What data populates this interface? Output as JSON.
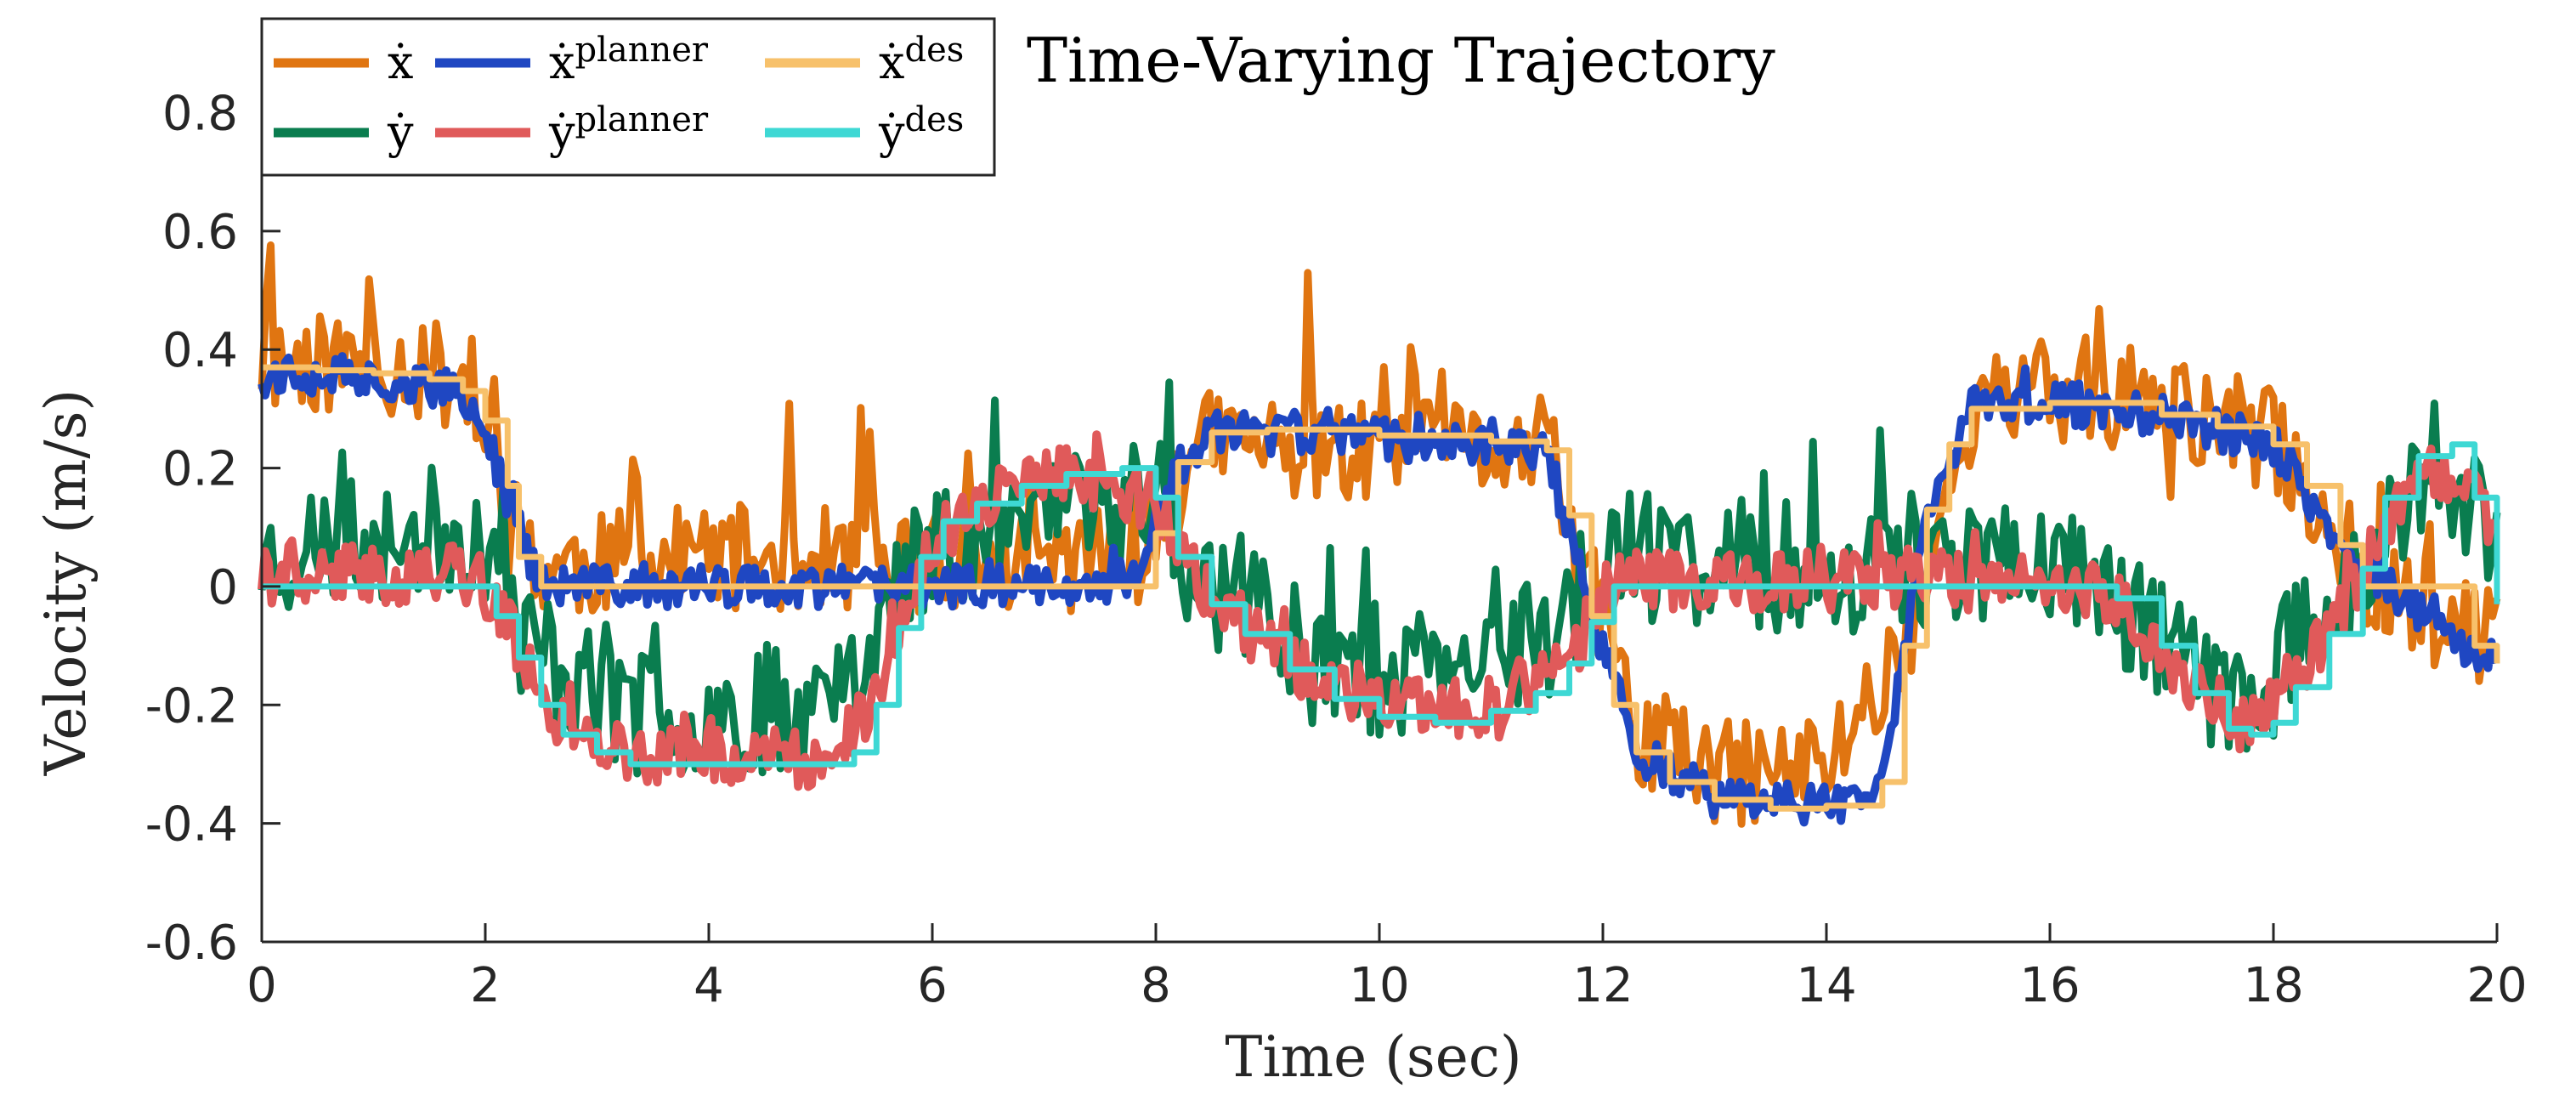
{
  "chart_data": {
    "type": "line",
    "title": "Time-Varying Trajectory",
    "xlabel": "Time (sec)",
    "ylabel": "Velocity (m/s)",
    "xlim": [
      0,
      20
    ],
    "ylim": [
      -0.6,
      0.95
    ],
    "x_ticks": [
      0,
      2,
      4,
      6,
      8,
      10,
      12,
      14,
      16,
      18,
      20
    ],
    "y_ticks": [
      -0.6,
      -0.4,
      -0.2,
      0,
      0.2,
      0.4,
      0.6,
      0.8
    ],
    "x_tick_labels": [
      "0",
      "2",
      "4",
      "6",
      "8",
      "10",
      "12",
      "14",
      "16",
      "18",
      "20"
    ],
    "y_tick_labels": [
      "-0.6",
      "-0.4",
      "-0.2",
      "0",
      "0.2",
      "0.4",
      "0.6",
      "0.8"
    ],
    "legend_position": "top-left",
    "series": [
      {
        "name": "x_dot_des",
        "label_base": "ẋ",
        "label_sup": "des",
        "color": "#f7c16b",
        "x": [
          0,
          0.5,
          1.0,
          1.5,
          1.8,
          2.0,
          2.2,
          2.3,
          2.5,
          3,
          4,
          5,
          6,
          7,
          7.8,
          8.0,
          8.2,
          8.5,
          9,
          10,
          11,
          11.5,
          11.7,
          11.9,
          12.1,
          12.3,
          12.6,
          13,
          13.5,
          14,
          14.5,
          14.7,
          14.9,
          15.1,
          15.3,
          16,
          17,
          17.5,
          18,
          18.3,
          18.6,
          18.8,
          19,
          19.5,
          19.8,
          20
        ],
        "y": [
          0.37,
          0.365,
          0.36,
          0.35,
          0.33,
          0.28,
          0.17,
          0.05,
          0.0,
          0.0,
          0.0,
          0.0,
          0.0,
          0.0,
          0.0,
          0.09,
          0.21,
          0.26,
          0.265,
          0.255,
          0.245,
          0.23,
          0.12,
          -0.05,
          -0.2,
          -0.28,
          -0.33,
          -0.36,
          -0.375,
          -0.37,
          -0.33,
          -0.1,
          0.13,
          0.24,
          0.3,
          0.31,
          0.29,
          0.27,
          0.24,
          0.17,
          0.07,
          0.0,
          0.0,
          0.0,
          -0.1,
          -0.13
        ]
      },
      {
        "name": "y_dot_des",
        "label_base": "ẏ",
        "label_sup": "des",
        "color": "#3ed8d4",
        "x": [
          0,
          1,
          1.9,
          2.1,
          2.3,
          2.5,
          2.7,
          3,
          3.3,
          4,
          5,
          5.3,
          5.5,
          5.7,
          5.9,
          6.1,
          6.4,
          6.8,
          7.2,
          7.7,
          8.0,
          8.2,
          8.5,
          8.8,
          9.2,
          9.6,
          10,
          10.5,
          11,
          11.4,
          11.7,
          11.9,
          12.1,
          13,
          14,
          15,
          16,
          16.6,
          17.0,
          17.3,
          17.6,
          17.8,
          18.0,
          18.2,
          18.5,
          18.8,
          19.0,
          19.3,
          19.6,
          19.8,
          20
        ],
        "y": [
          0.0,
          0.0,
          0.0,
          -0.05,
          -0.12,
          -0.2,
          -0.25,
          -0.28,
          -0.3,
          -0.3,
          -0.3,
          -0.28,
          -0.2,
          -0.07,
          0.05,
          0.11,
          0.14,
          0.17,
          0.19,
          0.2,
          0.15,
          0.05,
          -0.03,
          -0.08,
          -0.14,
          -0.19,
          -0.22,
          -0.23,
          -0.21,
          -0.18,
          -0.13,
          -0.06,
          0.0,
          0.0,
          0.0,
          0.0,
          0.0,
          -0.02,
          -0.1,
          -0.18,
          -0.24,
          -0.25,
          -0.23,
          -0.17,
          -0.08,
          0.03,
          0.15,
          0.22,
          0.24,
          0.15,
          -0.03
        ]
      },
      {
        "name": "x_dot_planner",
        "label_base": "ẋ",
        "label_sup": "planner",
        "color": "#1f47c2",
        "note": "noisy around x_dot_des",
        "x": [
          0,
          0.5,
          1.0,
          1.5,
          1.8,
          2.0,
          2.2,
          2.5,
          4,
          6,
          7.8,
          8.2,
          8.5,
          10,
          11.5,
          11.9,
          12.3,
          13,
          14,
          14.5,
          14.9,
          15.3,
          16,
          17,
          18,
          18.6,
          19,
          19.8,
          20
        ],
        "y": [
          0.36,
          0.36,
          0.35,
          0.34,
          0.32,
          0.26,
          0.15,
          0.0,
          0.0,
          0.0,
          0.01,
          0.2,
          0.26,
          0.25,
          0.23,
          -0.05,
          -0.28,
          -0.36,
          -0.37,
          -0.33,
          0.13,
          0.3,
          0.31,
          0.29,
          0.24,
          0.07,
          0.0,
          -0.1,
          -0.13
        ]
      },
      {
        "name": "y_dot_planner",
        "label_base": "ẏ",
        "label_sup": "planner",
        "color": "#e05a5a",
        "note": "noisy around y_dot_des",
        "x": [
          0,
          1.9,
          2.3,
          2.7,
          3.3,
          5,
          5.5,
          5.9,
          6.4,
          7.2,
          8.0,
          8.5,
          9.2,
          10,
          11,
          11.7,
          12.1,
          14,
          16,
          16.6,
          17.3,
          17.8,
          18.2,
          18.8,
          19.3,
          19.8,
          20
        ],
        "y": [
          0.02,
          0.02,
          -0.1,
          -0.24,
          -0.29,
          -0.29,
          -0.19,
          0.05,
          0.14,
          0.19,
          0.14,
          -0.02,
          -0.13,
          -0.21,
          -0.2,
          -0.12,
          0.01,
          0.01,
          0.01,
          -0.02,
          -0.17,
          -0.24,
          -0.16,
          0.03,
          0.21,
          0.15,
          0.1
        ]
      },
      {
        "name": "x_dot",
        "label_base": "ẋ",
        "label_sup": "",
        "color": "#e07511",
        "note": "highly noisy measured velocity following x_dot_des with large upward spikes",
        "x": [
          0,
          1,
          1.8,
          2.2,
          2.5,
          4,
          6,
          7.8,
          8.5,
          10,
          11.5,
          12.3,
          13,
          14,
          14.7,
          15.3,
          16,
          17,
          18,
          18.8,
          19.8,
          20
        ],
        "y": [
          0.38,
          0.38,
          0.35,
          0.12,
          0.03,
          0.05,
          0.04,
          0.05,
          0.25,
          0.22,
          0.23,
          -0.25,
          -0.32,
          -0.3,
          -0.1,
          0.3,
          0.33,
          0.3,
          0.25,
          0.02,
          -0.08,
          -0.1
        ]
      },
      {
        "name": "y_dot",
        "label_base": "ẏ",
        "label_sup": "",
        "color": "#0a7d4f",
        "note": "highly noisy measured velocity following y_dot_des with large oscillations",
        "x": [
          0,
          1,
          1.9,
          2.3,
          3.3,
          5,
          5.9,
          7.2,
          8.0,
          8.5,
          10,
          11,
          11.7,
          12.1,
          14,
          16,
          16.6,
          17.3,
          17.8,
          18.8,
          19.3,
          20
        ],
        "y": [
          0.05,
          0.08,
          0.1,
          -0.08,
          -0.22,
          -0.2,
          0.05,
          0.15,
          0.12,
          0.0,
          -0.15,
          -0.15,
          -0.05,
          0.05,
          0.03,
          0.05,
          -0.02,
          -0.15,
          -0.2,
          0.05,
          0.15,
          0.1
        ]
      }
    ]
  }
}
